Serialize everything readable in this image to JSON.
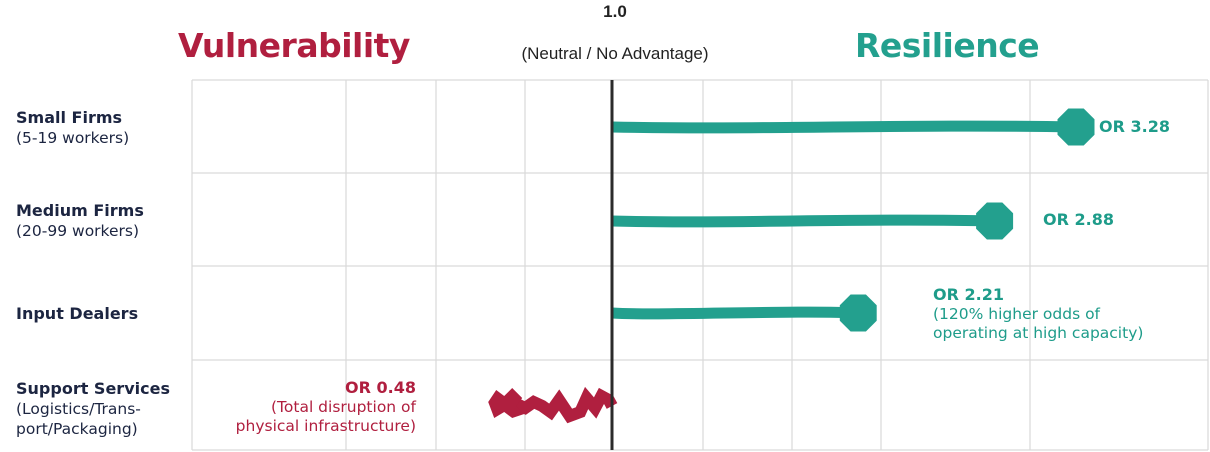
{
  "headers": {
    "vulnerability": "Vulnerability",
    "resilience": "Resilience",
    "neutral_value": "1.0",
    "neutral_caption": "(Neutral / No Advantage)"
  },
  "rows": [
    {
      "title": "Small Firms",
      "subtitle_lines": [
        "(5-19 workers)"
      ],
      "value_label": "OR 3.28",
      "note_lines": []
    },
    {
      "title": "Medium Firms",
      "subtitle_lines": [
        "(20-99 workers)"
      ],
      "value_label": "OR 2.88",
      "note_lines": []
    },
    {
      "title": "Input Dealers",
      "subtitle_lines": [],
      "value_label": "OR 2.21",
      "note_lines": [
        "(120% higher odds of",
        "operating at high capacity)"
      ]
    },
    {
      "title": "Support Services",
      "subtitle_lines": [
        "(Logistics/Trans-",
        "port/Packaging)"
      ],
      "value_label": "OR 0.48",
      "note_lines": [
        "(Total disruption of",
        "physical infrastructure)"
      ]
    }
  ],
  "colors": {
    "resilience": "#23a08e",
    "vulnerability": "#b01f3f",
    "grid": "#d9d9d9",
    "neutral_line": "#2b2b2b",
    "label_text": "#1c2541"
  },
  "chart_data": {
    "type": "lollipop",
    "reference_value": 1.0,
    "categories": [
      "Small Firms (5-19 workers)",
      "Medium Firms (20-99 workers)",
      "Input Dealers",
      "Support Services (Logistics/Transport/Packaging)"
    ],
    "values": [
      3.28,
      2.88,
      2.21,
      0.48
    ],
    "value_labels": [
      "OR 3.28",
      "OR 2.88",
      "OR 2.21",
      "OR 0.48"
    ],
    "xlim": [
      -0.3,
      4.0
    ],
    "grid": true
  }
}
